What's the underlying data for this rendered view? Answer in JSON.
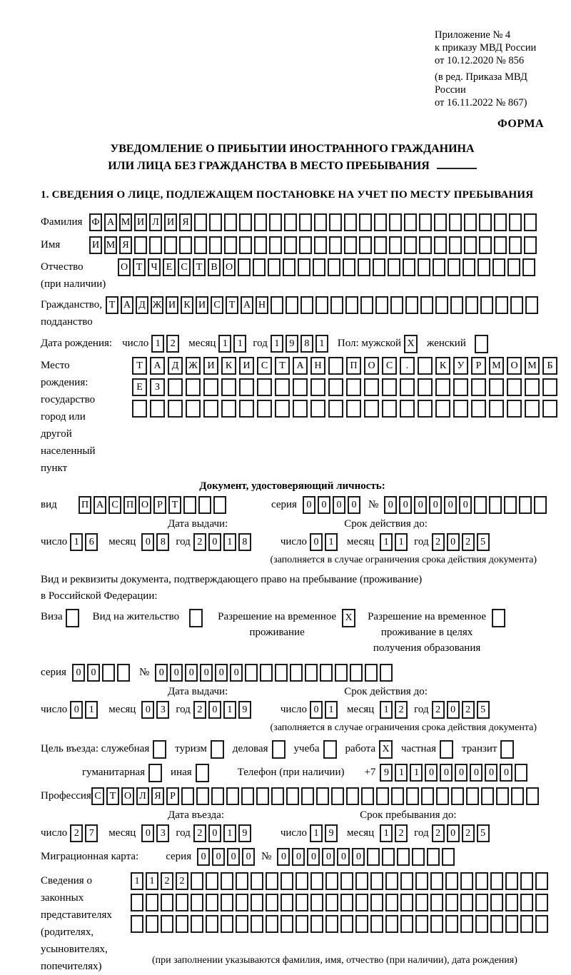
{
  "header": {
    "appendix_lines": [
      "Приложение № 4",
      "к приказу МВД России",
      "от 10.12.2020 № 856",
      "(в ред. Приказа МВД России",
      "от 16.11.2022 № 867)"
    ],
    "forma": "ФОРМА"
  },
  "title": {
    "line1": "УВЕДОМЛЕНИЕ О ПРИБЫТИИ ИНОСТРАННОГО ГРАЖДАНИНА",
    "line2": "ИЛИ ЛИЦА БЕЗ ГРАЖДАНСТВА В МЕСТО ПРЕБЫВАНИЯ"
  },
  "section1": {
    "heading": "1. СВЕДЕНИЯ О ЛИЦЕ, ПОДЛЕЖАЩЕМ ПОСТАНОВКЕ НА УЧЕТ ПО МЕСТУ ПРЕБЫВАНИЯ"
  },
  "labels": {
    "surname": "Фамилия",
    "name": "Имя",
    "patronymic_1": "Отчество",
    "patronymic_2": "(при наличии)",
    "citizenship_1": "Гражданство,",
    "citizenship_2": "подданство",
    "birth_date": "Дата рождения:",
    "day": "число",
    "month": "месяц",
    "year": "год",
    "sex_male": "Пол: мужской",
    "sex_female": "женский",
    "birthplace_lines": [
      "Место рождения:",
      "государство",
      "город или другой",
      "населенный пункт"
    ],
    "identity_doc_heading": "Документ, удостоверяющий личность:",
    "doc_type": "вид",
    "series": "серия",
    "number": "№",
    "issue_date": "Дата выдачи:",
    "valid_until": "Срок действия до:",
    "restriction_note": "(заполняется в случае ограничения срока действия документа)",
    "residence_doc_line1": "Вид и реквизиты документа, подтверждающего право на пребывание (проживание)",
    "residence_doc_line2": "в Российской Федерации:",
    "visa": "Виза",
    "residence_permit": "Вид на жительство",
    "temp_residence_1": "Разрешение на временное",
    "temp_residence_2": "проживание",
    "temp_edu_1": "Разрешение на временное",
    "temp_edu_2": "проживание в целях",
    "temp_edu_3": "получения образования",
    "purpose_lead": "Цель въезда: служебная",
    "tourism": "туризм",
    "business": "деловая",
    "study": "учеба",
    "work": "работа",
    "private": "частная",
    "transit": "транзит",
    "humanitarian": "гуманитарная",
    "other": "иная",
    "phone": "Телефон (при наличии)",
    "phone_prefix": "+7",
    "profession": "Профессия",
    "entry_date": "Дата въезда:",
    "stay_until": "Срок пребывания до:",
    "migration_card": "Миграционная карта:",
    "representatives_lines": [
      "Сведения о",
      "законных",
      "представителях",
      "(родителях,",
      "усыновителях,",
      "попечителях)"
    ],
    "representatives_note": "(при заполнении указываются фамилия, имя, отчество (при наличии), дата рождения)"
  },
  "boxes": {
    "surname": {
      "value": "ФАМИЛИЯ",
      "total": 30
    },
    "name": {
      "value": "ИМЯ",
      "total": 30
    },
    "patronymic": {
      "value": "ОТЧЕСТВО",
      "total": 28
    },
    "citizenship": {
      "value": "ТАДЖИКИСТАН",
      "total": 29
    },
    "birth_day": {
      "value": "12",
      "total": 2
    },
    "birth_month": {
      "value": "11",
      "total": 2
    },
    "birth_year": {
      "value": "1981",
      "total": 4
    },
    "sex_male": {
      "value": "X",
      "total": 1
    },
    "sex_female": {
      "value": "",
      "total": 1
    },
    "birthplace_row1": {
      "value": "ТАДЖИКИСТАН ПОС. КУРМОМБ",
      "total": 24
    },
    "birthplace_row2": {
      "value": "ЕЗ",
      "total": 24
    },
    "birthplace_row3": {
      "value": "",
      "total": 24
    },
    "doc_type": {
      "value": "ПАСПОРТ",
      "total": 10
    },
    "doc_series": {
      "value": "0000",
      "total": 4
    },
    "doc_number": {
      "value": "000000",
      "total": 11
    },
    "doc_issue_day": {
      "value": "16",
      "total": 2
    },
    "doc_issue_month": {
      "value": "08",
      "total": 2
    },
    "doc_issue_year": {
      "value": "2018",
      "total": 4
    },
    "doc_expiry_day": {
      "value": "01",
      "total": 2
    },
    "doc_expiry_month": {
      "value": "11",
      "total": 2
    },
    "doc_expiry_year": {
      "value": "2025",
      "total": 4
    },
    "visa_cb": {
      "value": "",
      "total": 1
    },
    "residence_permit_cb": {
      "value": "",
      "total": 1
    },
    "temp_residence_cb": {
      "value": "X",
      "total": 1
    },
    "temp_edu_cb": {
      "value": "",
      "total": 1
    },
    "permit_series": {
      "value": "00",
      "total": 4
    },
    "permit_number": {
      "value": "000000",
      "total": 16
    },
    "permit_issue_day": {
      "value": "01",
      "total": 2
    },
    "permit_issue_month": {
      "value": "03",
      "total": 2
    },
    "permit_issue_year": {
      "value": "2019",
      "total": 4
    },
    "permit_expiry_day": {
      "value": "01",
      "total": 2
    },
    "permit_expiry_month": {
      "value": "12",
      "total": 2
    },
    "permit_expiry_year": {
      "value": "2025",
      "total": 4
    },
    "purpose_official": {
      "value": "",
      "total": 1
    },
    "purpose_tourism": {
      "value": "",
      "total": 1
    },
    "purpose_business": {
      "value": "",
      "total": 1
    },
    "purpose_study": {
      "value": "",
      "total": 1
    },
    "purpose_work": {
      "value": "X",
      "total": 1
    },
    "purpose_private": {
      "value": "",
      "total": 1
    },
    "purpose_transit": {
      "value": "",
      "total": 1
    },
    "purpose_humanitarian": {
      "value": "",
      "total": 1
    },
    "purpose_other": {
      "value": "",
      "total": 1
    },
    "phone": {
      "value": "911000000",
      "total": 10
    },
    "profession": {
      "value": "СТОЛЯР",
      "total": 30
    },
    "entry_day": {
      "value": "27",
      "total": 2
    },
    "entry_month": {
      "value": "03",
      "total": 2
    },
    "entry_year": {
      "value": "2019",
      "total": 4
    },
    "stay_day": {
      "value": "19",
      "total": 2
    },
    "stay_month": {
      "value": "12",
      "total": 2
    },
    "stay_year": {
      "value": "2025",
      "total": 4
    },
    "migcard_series": {
      "value": "0000",
      "total": 4
    },
    "migcard_number": {
      "value": "000000",
      "total": 12
    },
    "representatives_row1": {
      "value": "1122",
      "total": 28
    },
    "representatives_row2": {
      "value": "",
      "total": 28
    },
    "representatives_row3": {
      "value": "",
      "total": 28
    }
  }
}
